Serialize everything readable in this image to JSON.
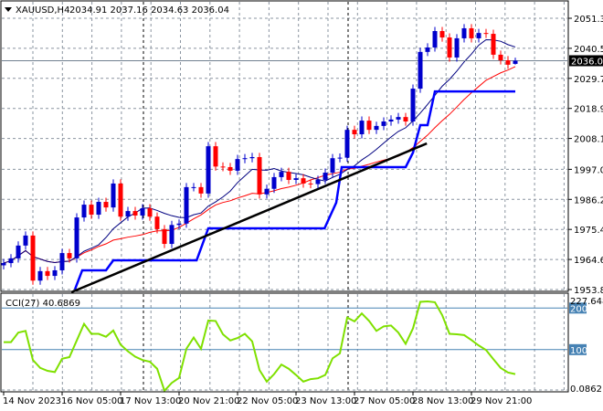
{
  "header": {
    "symbol": "XAUUSD,H4",
    "ohlc": "2034.91 2037.16 2034.63 2036.04"
  },
  "chart_data": [
    {
      "type": "candlestick",
      "title": "XAUUSD,H4",
      "last_ohlc": {
        "open": 2034.91,
        "high": 2037.16,
        "low": 2034.63,
        "close": 2036.04
      },
      "current_price_label": "2036.04",
      "ylim": [
        1953.8,
        2051.3
      ],
      "y_ticks": [
        "2051.30",
        "2040.50",
        "2029.70",
        "2018.90",
        "2008.10",
        "1997.00",
        "1986.20",
        "1975.40",
        "1964.60",
        "1953.80"
      ],
      "y_tick_values": [
        2051.3,
        2040.5,
        2029.7,
        2018.9,
        2008.1,
        1997.0,
        1986.2,
        1975.4,
        1964.6,
        1953.8
      ],
      "x_ticks": [
        "14 Nov 2023",
        "16 Nov 05:00",
        "17 Nov 13:00",
        "20 Nov 21:00",
        "22 Nov 05:00",
        "23 Nov 13:00",
        "27 Nov 05:00",
        "28 Nov 13:00",
        "29 Nov 21:00"
      ],
      "x_tick_bars": [
        0,
        8,
        16,
        24,
        32,
        40,
        48,
        56,
        64
      ],
      "grid": true,
      "first_open": 1962.5,
      "closes": [
        1963.3,
        1965,
        1969.6,
        1973.2,
        1957,
        1960.4,
        1958.7,
        1960.7,
        1966.9,
        1965,
        1979.7,
        1984.3,
        1980.7,
        1985.3,
        1983.3,
        1991.9,
        1980,
        1982,
        1980.4,
        1983,
        1980,
        1975.5,
        1970.2,
        1977,
        1977.5,
        1990.6,
        1990.6,
        1988.3,
        2005.3,
        1998,
        1997.8,
        1996.5,
        2000.7,
        2001,
        2001.4,
        1988,
        1990,
        1994.2,
        1996.1,
        1993.2,
        1993.8,
        1991.9,
        1991.7,
        1993.2,
        1995.8,
        2001,
        2001.2,
        2011.2,
        2009.6,
        2014.5,
        2011.2,
        2012.6,
        2014.2,
        2014.9,
        2015.8,
        2014.2,
        2026,
        2039.2,
        2040.8,
        2046.7,
        2044.4,
        2037.2,
        2044.1,
        2047.7,
        2044.1,
        2046,
        2045.7,
        2038.2,
        2036.2,
        2034.6,
        2036.04
      ],
      "trendline": [
        [
          9.25,
          1952.8
        ],
        [
          57.9,
          2006.3
        ]
      ],
      "step_line": [
        [
          9.75,
          1953.8
        ],
        [
          10.75,
          1960.7
        ],
        [
          14,
          1960.7
        ],
        [
          15,
          1964.3
        ],
        [
          26.4,
          1964.3
        ],
        [
          28,
          1975.8
        ],
        [
          43.9,
          1975.8
        ],
        [
          45.5,
          1985
        ],
        [
          46.25,
          1997.8
        ],
        [
          55,
          1997.8
        ],
        [
          56,
          2003
        ],
        [
          57,
          2012.9
        ],
        [
          58,
          2012.9
        ],
        [
          59,
          2025
        ],
        [
          70,
          2025
        ]
      ],
      "colors": {
        "bull": "#0000cc",
        "bear": "#ff0000",
        "fast_ma": "#000080",
        "slow_ma": "#ff0000",
        "step_line": "#0000ff",
        "trendline": "#000000",
        "price_line": "#708090"
      }
    },
    {
      "type": "line",
      "title": "CCI(27) 40.6869",
      "series_name": "CCI(27)",
      "last_value": "40.6869",
      "ylim": [
        0.0862,
        227.648
      ],
      "top_label": "227.648",
      "bottom_label": "0.0862",
      "levels": [
        "200",
        "100"
      ],
      "level_values": [
        200,
        100
      ],
      "values": [
        118,
        118,
        141,
        145,
        75,
        56,
        49,
        46,
        78,
        82,
        122,
        162,
        138,
        138,
        131,
        146,
        112,
        96,
        83,
        75,
        71,
        54,
        1,
        20,
        32,
        102,
        129,
        102,
        170,
        169,
        137,
        122,
        128,
        138,
        120,
        51,
        23,
        41,
        64,
        54,
        39,
        23,
        29,
        31,
        39,
        79,
        91,
        177,
        168,
        187,
        169,
        145,
        156,
        158,
        141,
        114,
        151,
        215,
        216,
        214,
        183,
        138,
        137,
        135,
        123,
        110,
        99,
        77,
        56,
        45,
        41
      ],
      "color": "#7fe000",
      "level_color": "#4682b4"
    }
  ]
}
